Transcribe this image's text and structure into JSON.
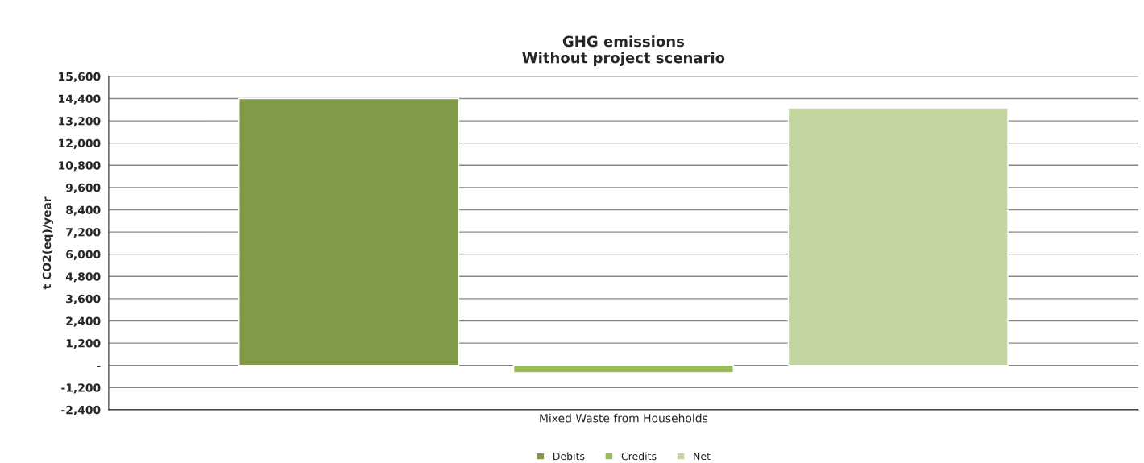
{
  "chart_data": {
    "type": "bar",
    "title": "GHG emissions\nWithout project scenario",
    "ylabel": "t CO2(eq)/year",
    "categories": [
      "Mixed Waste from Households"
    ],
    "series": [
      {
        "name": "Debits",
        "color": "#7f9b48",
        "values": [
          14400
        ]
      },
      {
        "name": "Credits",
        "color": "#9bbb59",
        "values": [
          -400
        ]
      },
      {
        "name": "Net",
        "color": "#c4d6a0",
        "values": [
          13900
        ]
      }
    ],
    "ylim": [
      -2400,
      15600
    ],
    "yticks": [
      {
        "value": -2400,
        "label": "-2,400"
      },
      {
        "value": -1200,
        "label": "-1,200"
      },
      {
        "value": 0,
        "label": "-"
      },
      {
        "value": 1200,
        "label": "1,200"
      },
      {
        "value": 2400,
        "label": "2,400"
      },
      {
        "value": 3600,
        "label": "3,600"
      },
      {
        "value": 4800,
        "label": "4,800"
      },
      {
        "value": 6000,
        "label": "6,000"
      },
      {
        "value": 7200,
        "label": "7,200"
      },
      {
        "value": 8400,
        "label": "8,400"
      },
      {
        "value": 9600,
        "label": "9,600"
      },
      {
        "value": 10800,
        "label": "10,800"
      },
      {
        "value": 12000,
        "label": "12,000"
      },
      {
        "value": 13200,
        "label": "13,200"
      },
      {
        "value": 14400,
        "label": "14,400"
      },
      {
        "value": 15600,
        "label": "15,600"
      }
    ],
    "grid": "y",
    "legend": "bottom"
  }
}
